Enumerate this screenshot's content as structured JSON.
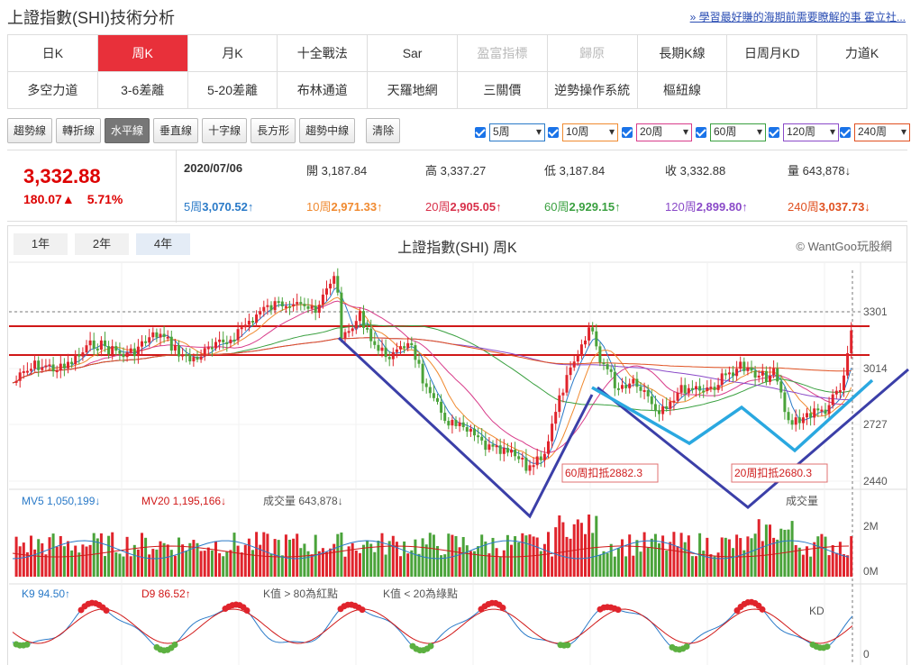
{
  "header": {
    "title": "上證指數(SHI)技術分析",
    "promo": "» 學習最好賺的海期前需要瞭解的事 霍立社..."
  },
  "tabs_row1": [
    {
      "label": "日K",
      "state": "normal"
    },
    {
      "label": "周K",
      "state": "active"
    },
    {
      "label": "月K",
      "state": "normal"
    },
    {
      "label": "十全戰法",
      "state": "normal"
    },
    {
      "label": "Sar",
      "state": "normal"
    },
    {
      "label": "盈富指標",
      "state": "disabled"
    },
    {
      "label": "歸原",
      "state": "disabled"
    },
    {
      "label": "長期K線",
      "state": "normal"
    },
    {
      "label": "日周月KD",
      "state": "normal"
    },
    {
      "label": "力道K",
      "state": "normal"
    }
  ],
  "tabs_row2": [
    {
      "label": "多空力道",
      "state": "normal"
    },
    {
      "label": "3-6差離",
      "state": "normal"
    },
    {
      "label": "5-20差離",
      "state": "normal"
    },
    {
      "label": "布林通道",
      "state": "normal"
    },
    {
      "label": "天羅地網",
      "state": "normal"
    },
    {
      "label": "三關價",
      "state": "normal"
    },
    {
      "label": "逆勢操作系統",
      "state": "normal"
    },
    {
      "label": "樞紐線",
      "state": "normal"
    }
  ],
  "tools": [
    {
      "label": "趨勢線"
    },
    {
      "label": "轉折線"
    },
    {
      "label": "水平線",
      "active": true
    },
    {
      "label": "垂直線"
    },
    {
      "label": "十字線"
    },
    {
      "label": "長方形"
    },
    {
      "label": "趨勢中線"
    },
    {
      "label": "清除"
    }
  ],
  "ma_selects": [
    {
      "value": "5周",
      "color": "#2a7ac8"
    },
    {
      "value": "10周",
      "color": "#f08a30"
    },
    {
      "value": "20周",
      "color": "#d83c8a"
    },
    {
      "value": "60周",
      "color": "#3aa040"
    },
    {
      "value": "120周",
      "color": "#8a4ac8"
    },
    {
      "value": "240周",
      "color": "#e05020"
    }
  ],
  "quote": {
    "price": "3,332.88",
    "change": "180.07▲",
    "change_pct": "5.71%",
    "date": "2020/07/06",
    "open": "開 3,187.84",
    "high": "高 3,337.27",
    "low": "低 3,187.84",
    "close": "收 3,332.88",
    "volume": "量 643,878↓"
  },
  "ma_values": [
    {
      "label": "5周",
      "value": "3,070.52↑",
      "color": "#2a7ac8"
    },
    {
      "label": "10周",
      "value": "2,971.33↑",
      "color": "#f08a30"
    },
    {
      "label": "20周",
      "value": "2,905.05↑",
      "color": "#d8304a"
    },
    {
      "label": "60周",
      "value": "2,929.15↑",
      "color": "#3aa040"
    },
    {
      "label": "120周",
      "value": "2,899.80↑",
      "color": "#8a4ac8"
    },
    {
      "label": "240周",
      "value": "3,037.73↓",
      "color": "#e05020"
    }
  ],
  "chart": {
    "ranges": [
      {
        "label": "1年"
      },
      {
        "label": "2年"
      },
      {
        "label": "4年",
        "active": true
      }
    ],
    "title": "上證指數(SHI) 周K",
    "credit": "© WantGoo玩股網",
    "price_ticks": [
      "3301",
      "3014",
      "2727",
      "2440"
    ],
    "annotations": [
      "60周扣抵2882.3",
      "20周扣抵2680.3"
    ],
    "volume_legend": {
      "mv5": "MV5 1,050,199↓",
      "mv20": "MV20 1,195,166↓",
      "vol": "成交量 643,878↓",
      "tag": "成交量"
    },
    "volume_ticks": [
      "2M",
      "0M"
    ],
    "kd_legend": {
      "k": "K9 94.50↑",
      "d": "D9 86.52↑",
      "note1": "K值 > 80為紅點",
      "note2": "K值 < 20為綠點",
      "tag": "KD"
    },
    "kd_ticks": [
      "0"
    ]
  },
  "colors": {
    "accent": "#e8303a",
    "up": "#e0242c",
    "down": "#4aa33a",
    "pattern": "#3b3fa8",
    "neckline": "#2aa8e0"
  }
}
